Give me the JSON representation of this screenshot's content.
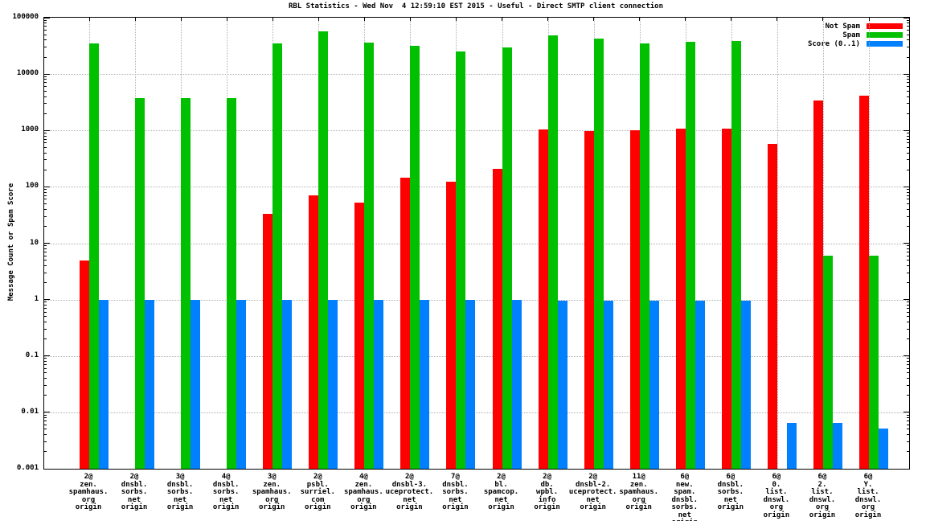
{
  "chart_data": {
    "type": "bar",
    "title": "RBL Statistics - Wed Nov  4 12:59:10 EST 2015 - Useful - Direct SMTP client connection",
    "ylabel": "Message Count or Spam Score",
    "y_axis": {
      "scale": "log",
      "min": 0.001,
      "max": 100000,
      "tick_labels": [
        "100000",
        "10000",
        "1000",
        "100",
        "10",
        "1",
        "0.1",
        "0.01",
        "0.001"
      ]
    },
    "grid": true,
    "legend_position": "top-right-inside",
    "legend": [
      {
        "label": "Not Spam",
        "color": "#ff0000",
        "series": "not_spam"
      },
      {
        "label": "Spam",
        "color": "#00c000",
        "series": "spam"
      },
      {
        "label": "Score (0..1)",
        "color": "#0080ff",
        "series": "score"
      }
    ],
    "groups": [
      {
        "label_lines": [
          "2@",
          "zen.",
          "spamhaus.",
          "org",
          "origin"
        ],
        "not_spam": 5,
        "spam": 35000,
        "score": 1
      },
      {
        "label_lines": [
          "2@",
          "dnsbl.",
          "sorbs.",
          "net",
          "origin"
        ],
        "not_spam": null,
        "spam": 3700,
        "score": 1
      },
      {
        "label_lines": [
          "3@",
          "dnsbl.",
          "sorbs.",
          "net",
          "origin"
        ],
        "not_spam": null,
        "spam": 3700,
        "score": 1
      },
      {
        "label_lines": [
          "4@",
          "dnsbl.",
          "sorbs.",
          "net",
          "origin"
        ],
        "not_spam": null,
        "spam": 3700,
        "score": 1
      },
      {
        "label_lines": [
          "3@",
          "zen.",
          "spamhaus.",
          "org",
          "origin"
        ],
        "not_spam": 33,
        "spam": 35000,
        "score": 1
      },
      {
        "label_lines": [
          "2@",
          "psbl.",
          "surriel.",
          "com",
          "origin"
        ],
        "not_spam": 70,
        "spam": 58000,
        "score": 1
      },
      {
        "label_lines": [
          "4@",
          "zen.",
          "spamhaus.",
          "org",
          "origin"
        ],
        "not_spam": 52,
        "spam": 36000,
        "score": 1
      },
      {
        "label_lines": [
          "2@",
          "dnsbl-3.",
          "uceprotect.",
          "net",
          "origin"
        ],
        "not_spam": 145,
        "spam": 32000,
        "score": 1
      },
      {
        "label_lines": [
          "7@",
          "dnsbl.",
          "sorbs.",
          "net",
          "origin"
        ],
        "not_spam": 125,
        "spam": 25000,
        "score": 1
      },
      {
        "label_lines": [
          "2@",
          "bl.",
          "spamcop.",
          "net",
          "origin"
        ],
        "not_spam": 210,
        "spam": 30000,
        "score": 1
      },
      {
        "label_lines": [
          "2@",
          "db.",
          "wpbl.",
          "info",
          "origin"
        ],
        "not_spam": 1040,
        "spam": 48000,
        "score": 0.95
      },
      {
        "label_lines": [
          "2@",
          "dnsbl-2.",
          "uceprotect.",
          "net",
          "origin"
        ],
        "not_spam": 990,
        "spam": 42000,
        "score": 0.95
      },
      {
        "label_lines": [
          "11@",
          "zen.",
          "spamhaus.",
          "org",
          "origin"
        ],
        "not_spam": 1010,
        "spam": 35000,
        "score": 0.95
      },
      {
        "label_lines": [
          "6@",
          "new.",
          "spam.",
          "dnsbl.",
          "sorbs.",
          "net",
          "origin"
        ],
        "not_spam": 1090,
        "spam": 37000,
        "score": 0.95
      },
      {
        "label_lines": [
          "6@",
          "dnsbl.",
          "sorbs.",
          "net",
          "origin"
        ],
        "not_spam": 1080,
        "spam": 38000,
        "score": 0.95
      },
      {
        "label_lines": [
          "6@",
          "0.",
          "list.",
          "dnswl.",
          "org",
          "origin"
        ],
        "not_spam": 570,
        "spam": null,
        "score": 0.0064
      },
      {
        "label_lines": [
          "6@",
          "2.",
          "list.",
          "dnswl.",
          "org",
          "origin"
        ],
        "not_spam": 3400,
        "spam": 6,
        "score": 0.0064
      },
      {
        "label_lines": [
          "6@",
          "Y.",
          "list.",
          "dnswl.",
          "org",
          "origin"
        ],
        "not_spam": 4100,
        "spam": 6,
        "score": 0.0052
      }
    ]
  }
}
